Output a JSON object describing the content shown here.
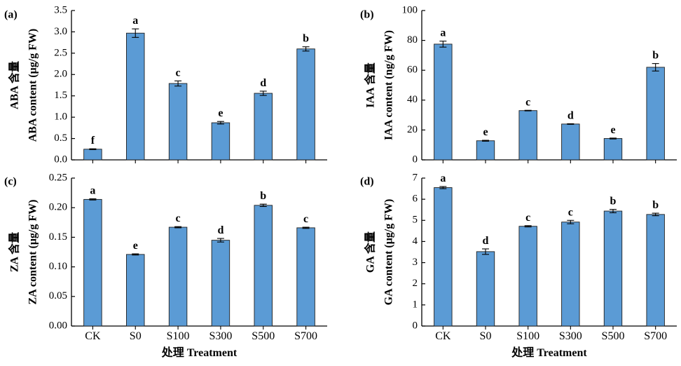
{
  "x_axis_title": "处理 Treatment",
  "colors": {
    "bar_fill": "#5b9bd5",
    "bar_stroke": "#1f1f1f",
    "axis": "#000000"
  },
  "chart_data": [
    {
      "panel": "(a)",
      "type": "bar",
      "ylabel_line1": "ABA 含量",
      "ylabel_line2": "ABA content (μg/g FW)",
      "ylim": [
        0,
        3.5
      ],
      "yticks": [
        "0.0",
        "0.5",
        "1.0",
        "1.5",
        "2.0",
        "2.5",
        "3.0",
        "3.5"
      ],
      "categories": [
        "CK",
        "S0",
        "S100",
        "S300",
        "S500",
        "S700"
      ],
      "values": [
        0.25,
        2.97,
        1.79,
        0.87,
        1.56,
        2.6
      ],
      "errors": [
        0.01,
        0.1,
        0.06,
        0.03,
        0.05,
        0.05
      ],
      "letters": [
        "f",
        "a",
        "c",
        "e",
        "d",
        "b"
      ],
      "show_xticks": false
    },
    {
      "panel": "(b)",
      "type": "bar",
      "ylabel_line1": "IAA 含量",
      "ylabel_line2": "IAA content (ng/g FW)",
      "ylim": [
        0,
        100
      ],
      "yticks": [
        "0",
        "20",
        "40",
        "60",
        "80",
        "100"
      ],
      "categories": [
        "CK",
        "S0",
        "S100",
        "S300",
        "S500",
        "S700"
      ],
      "values": [
        77.5,
        12.8,
        33.0,
        24.0,
        14.3,
        62.0
      ],
      "errors": [
        2.0,
        0.3,
        0.2,
        0.2,
        0.3,
        2.5
      ],
      "letters": [
        "a",
        "e",
        "c",
        "d",
        "e",
        "b"
      ],
      "show_xticks": false
    },
    {
      "panel": "(c)",
      "type": "bar",
      "ylabel_line1": "ZA 含量",
      "ylabel_line2": "ZA content (μg/g FW)",
      "ylim": [
        0,
        0.25
      ],
      "yticks": [
        "0.00",
        "0.05",
        "0.10",
        "0.15",
        "0.20",
        "0.25"
      ],
      "categories": [
        "CK",
        "S0",
        "S100",
        "S300",
        "S500",
        "S700"
      ],
      "values": [
        0.214,
        0.121,
        0.167,
        0.145,
        0.204,
        0.166
      ],
      "errors": [
        0.001,
        0.001,
        0.001,
        0.003,
        0.002,
        0.001
      ],
      "letters": [
        "a",
        "e",
        "c",
        "d",
        "b",
        "c"
      ],
      "show_xticks": true
    },
    {
      "panel": "(d)",
      "type": "bar",
      "ylabel_line1": "GA 含量",
      "ylabel_line2": "GA content (μg/g FW)",
      "ylim": [
        0,
        7
      ],
      "yticks": [
        "0",
        "1",
        "2",
        "3",
        "4",
        "5",
        "6",
        "7"
      ],
      "categories": [
        "CK",
        "S0",
        "S100",
        "S300",
        "S500",
        "S700"
      ],
      "values": [
        6.55,
        3.52,
        4.72,
        4.92,
        5.44,
        5.28
      ],
      "errors": [
        0.05,
        0.13,
        0.03,
        0.08,
        0.08,
        0.06
      ],
      "letters": [
        "a",
        "d",
        "c",
        "c",
        "b",
        "b"
      ],
      "show_xticks": true
    }
  ]
}
